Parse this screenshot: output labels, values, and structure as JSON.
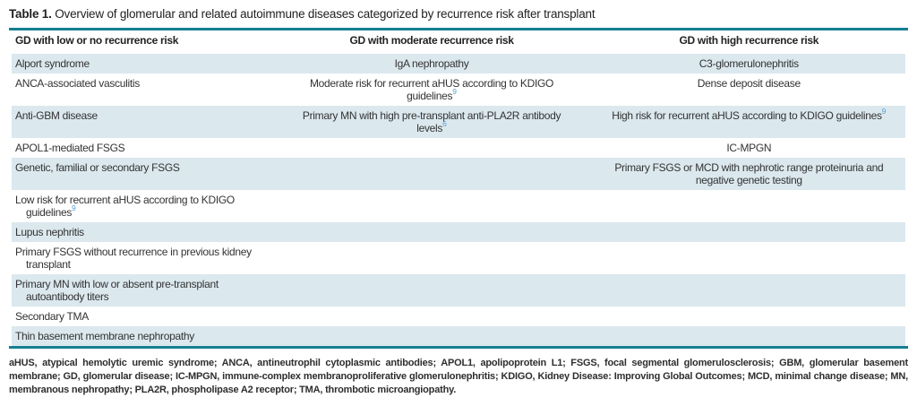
{
  "title": {
    "label": "Table 1.",
    "text": "Overview of glomerular and related autoimmune diseases categorized by recurrence risk after transplant"
  },
  "table": {
    "columns": [
      {
        "label": "GD with low or no recurrence risk"
      },
      {
        "label": "GD with moderate recurrence risk"
      },
      {
        "label": "GD with high recurrence risk"
      }
    ],
    "rows": [
      {
        "low": {
          "text": "Alport syndrome"
        },
        "moderate": {
          "text": "IgA nephropathy"
        },
        "high": {
          "text": "C3-glomerulonephritis"
        }
      },
      {
        "low": {
          "text": "ANCA-associated vasculitis"
        },
        "moderate": {
          "text": "Moderate risk for recurrent aHUS according to KDIGO guidelines",
          "ref": "9"
        },
        "high": {
          "text": "Dense deposit disease"
        }
      },
      {
        "low": {
          "text": "Anti-GBM disease"
        },
        "moderate": {
          "text": "Primary MN with high pre-transplant anti-PLA2R antibody levels",
          "ref": "6"
        },
        "high": {
          "text": "High risk for recurrent aHUS according to KDIGO guidelines",
          "ref": "9"
        }
      },
      {
        "low": {
          "text": "APOL1-mediated FSGS"
        },
        "moderate": {
          "text": ""
        },
        "high": {
          "text": "IC-MPGN"
        }
      },
      {
        "low": {
          "text": "Genetic, familial or secondary FSGS"
        },
        "moderate": {
          "text": ""
        },
        "high": {
          "text": "Primary FSGS or MCD with nephrotic range proteinuria and negative genetic testing"
        }
      },
      {
        "low": {
          "text": "Low risk for recurrent aHUS according to KDIGO guidelines",
          "ref": "9"
        },
        "moderate": {
          "text": ""
        },
        "high": {
          "text": ""
        }
      },
      {
        "low": {
          "text": "Lupus nephritis"
        },
        "moderate": {
          "text": ""
        },
        "high": {
          "text": ""
        }
      },
      {
        "low": {
          "text": "Primary FSGS without recurrence in previous kidney transplant"
        },
        "moderate": {
          "text": ""
        },
        "high": {
          "text": ""
        }
      },
      {
        "low": {
          "text": "Primary MN with low or absent pre-transplant autoantibody titers"
        },
        "moderate": {
          "text": ""
        },
        "high": {
          "text": ""
        }
      },
      {
        "low": {
          "text": "Secondary TMA"
        },
        "moderate": {
          "text": ""
        },
        "high": {
          "text": ""
        }
      },
      {
        "low": {
          "text": "Thin basement membrane nephropathy"
        },
        "moderate": {
          "text": ""
        },
        "high": {
          "text": ""
        }
      }
    ]
  },
  "footnote": "aHUS, atypical hemolytic uremic syndrome; ANCA, antineutrophil cytoplasmic antibodies; APOL1, apolipoprotein L1; FSGS, focal segmental glomerulosclerosis; GBM, glomerular basement membrane; GD, glomerular disease; IC-MPGN, immune-complex membranoproliferative glomerulonephritis; KDIGO, Kidney Disease: Improving Global Outcomes; MCD, minimal change disease; MN, membranous nephropathy; PLA2R, phospholipase A2 receptor; TMA, thrombotic microangiopathy.",
  "colors": {
    "accent_teal": "#157f91",
    "row_shade": "#dbe8ee",
    "ref_blue": "#5b9fd4",
    "text_dark": "#333333",
    "header_rule_gray": "#c9d2d6"
  }
}
